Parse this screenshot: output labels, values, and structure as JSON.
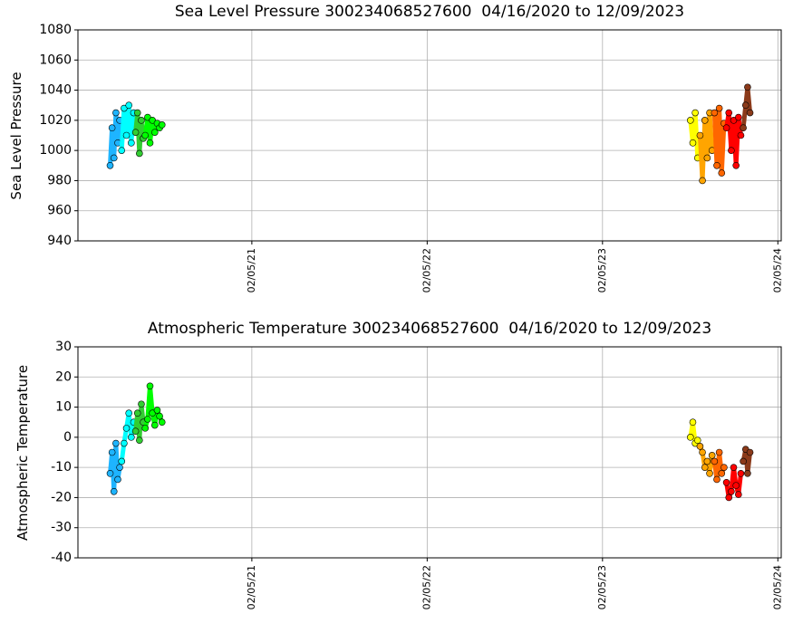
{
  "chart_data": [
    {
      "type": "scatter",
      "title": "Sea Level Pressure 300234068527600  04/16/2020 to 12/09/2023",
      "y_label": "Sea Level Pressure",
      "xlim": [
        "02/09/20",
        "02/12/24"
      ],
      "xticks": [
        "02/05/21",
        "02/05/22",
        "02/05/23",
        "02/05/24"
      ],
      "ylim": [
        940,
        1080
      ],
      "yticks": [
        940,
        960,
        980,
        1000,
        1020,
        1040,
        1060,
        1080
      ],
      "grid": true,
      "series": [
        {
          "color": "#1eb4ff",
          "x": [
            "04/16/20",
            "04/20/20",
            "04/24/20",
            "04/28/20",
            "05/02/20",
            "05/06/20"
          ],
          "values": [
            990,
            1015,
            995,
            1025,
            1005,
            1020
          ]
        },
        {
          "color": "#00ffff",
          "x": [
            "05/10/20",
            "05/15/20",
            "05/20/20",
            "05/25/20",
            "05/30/20",
            "06/04/20"
          ],
          "values": [
            1000,
            1028,
            1010,
            1030,
            1005,
            1025
          ]
        },
        {
          "color": "#32cd32",
          "x": [
            "06/08/20",
            "06/12/20",
            "06/16/20",
            "06/20/20",
            "06/24/20"
          ],
          "values": [
            1012,
            1025,
            998,
            1020,
            1008
          ]
        },
        {
          "color": "#00ff00",
          "x": [
            "06/28/20",
            "07/03/20",
            "07/08/20",
            "07/13/20",
            "07/18/20",
            "07/23/20",
            "07/28/20",
            "08/02/20"
          ],
          "values": [
            1010,
            1022,
            1005,
            1020,
            1012,
            1018,
            1015,
            1017
          ]
        },
        {
          "color": "#ffff00",
          "x": [
            "08/07/23",
            "08/12/23",
            "08/17/23",
            "08/22/23"
          ],
          "values": [
            1020,
            1005,
            1025,
            995
          ]
        },
        {
          "color": "#ffa500",
          "x": [
            "08/27/23",
            "09/01/23",
            "09/06/23",
            "09/11/23",
            "09/16/23",
            "09/21/23"
          ],
          "values": [
            1010,
            980,
            1020,
            995,
            1025,
            1000
          ]
        },
        {
          "color": "#ff6600",
          "x": [
            "09/26/23",
            "10/01/23",
            "10/06/23",
            "10/11/23",
            "10/16/23"
          ],
          "values": [
            1025,
            990,
            1028,
            985,
            1018
          ]
        },
        {
          "color": "#ff0000",
          "x": [
            "10/21/23",
            "10/26/23",
            "10/31/23",
            "11/05/23",
            "11/10/23",
            "11/15/23",
            "11/20/23"
          ],
          "values": [
            1015,
            1025,
            1000,
            1020,
            990,
            1022,
            1010
          ]
        },
        {
          "color": "#8b3a1a",
          "x": [
            "11/25/23",
            "11/30/23",
            "12/04/23",
            "12/09/23"
          ],
          "values": [
            1015,
            1030,
            1042,
            1025
          ]
        }
      ]
    },
    {
      "type": "scatter",
      "title": "Atmospheric Temperature 300234068527600  04/16/2020 to 12/09/2023",
      "y_label": "Atmospheric Temperature",
      "xlim": [
        "02/09/20",
        "02/12/24"
      ],
      "xticks": [
        "02/05/21",
        "02/05/22",
        "02/05/23",
        "02/05/24"
      ],
      "ylim": [
        -40,
        30
      ],
      "yticks": [
        -40,
        -30,
        -20,
        -10,
        0,
        10,
        20,
        30
      ],
      "grid": true,
      "series": [
        {
          "color": "#1eb4ff",
          "x": [
            "04/16/20",
            "04/20/20",
            "04/24/20",
            "04/28/20",
            "05/02/20",
            "05/06/20"
          ],
          "values": [
            -12,
            -5,
            -18,
            -2,
            -14,
            -10
          ]
        },
        {
          "color": "#00ffff",
          "x": [
            "05/10/20",
            "05/15/20",
            "05/20/20",
            "05/25/20",
            "05/30/20",
            "06/04/20"
          ],
          "values": [
            -8,
            -2,
            3,
            8,
            0,
            5
          ]
        },
        {
          "color": "#32cd32",
          "x": [
            "06/08/20",
            "06/12/20",
            "06/16/20",
            "06/20/20",
            "06/24/20"
          ],
          "values": [
            2,
            8,
            -1,
            11,
            5
          ]
        },
        {
          "color": "#00ff00",
          "x": [
            "06/28/20",
            "07/03/20",
            "07/08/20",
            "07/13/20",
            "07/18/20",
            "07/23/20",
            "07/28/20",
            "08/02/20"
          ],
          "values": [
            3,
            6,
            17,
            8,
            4,
            9,
            7,
            5
          ]
        },
        {
          "color": "#ffff00",
          "x": [
            "08/07/23",
            "08/12/23",
            "08/17/23",
            "08/22/23"
          ],
          "values": [
            0,
            5,
            -2,
            -1
          ]
        },
        {
          "color": "#ffa500",
          "x": [
            "08/27/23",
            "09/01/23",
            "09/06/23",
            "09/11/23",
            "09/16/23",
            "09/21/23"
          ],
          "values": [
            -3,
            -5,
            -10,
            -8,
            -12,
            -6
          ]
        },
        {
          "color": "#ff6600",
          "x": [
            "09/26/23",
            "10/01/23",
            "10/06/23",
            "10/11/23",
            "10/16/23"
          ],
          "values": [
            -8,
            -14,
            -5,
            -12,
            -10
          ]
        },
        {
          "color": "#ff0000",
          "x": [
            "10/21/23",
            "10/26/23",
            "10/31/23",
            "11/05/23",
            "11/10/23",
            "11/15/23",
            "11/20/23"
          ],
          "values": [
            -15,
            -20,
            -18,
            -10,
            -16,
            -19,
            -12
          ]
        },
        {
          "color": "#8b3a1a",
          "x": [
            "11/25/23",
            "11/30/23",
            "12/04/23",
            "12/09/23"
          ],
          "values": [
            -8,
            -4,
            -12,
            -5
          ]
        }
      ]
    }
  ]
}
